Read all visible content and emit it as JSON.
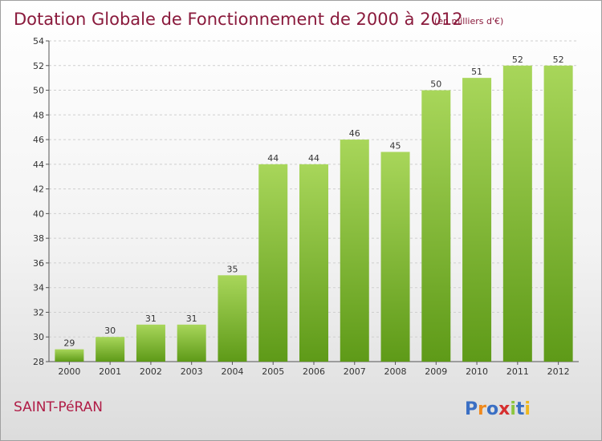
{
  "title": "Dotation Globale de Fonctionnement de 2000 à 2012",
  "subtitle": "(en milliers d'€)",
  "commune": "SAINT-PéRAN",
  "logo": {
    "text": "Proxiti",
    "letters": [
      "P",
      "r",
      "o",
      "x",
      "i",
      "t",
      "i"
    ],
    "colors": [
      "#3a6fc4",
      "#f08a1e",
      "#3a6fc4",
      "#d62f2f",
      "#8dc63f",
      "#3a6fc4",
      "#f0b81e"
    ]
  },
  "colors": {
    "title": "#8a1a3c",
    "commune": "#b01c46",
    "bar_top": "#a8d65a",
    "bar_bottom": "#5e9a18",
    "grid": "#cfcfcf"
  },
  "chart_data": {
    "type": "bar",
    "title": "Dotation Globale de Fonctionnement de 2000 à 2012",
    "subtitle": "(en milliers d'€)",
    "categories": [
      "2000",
      "2001",
      "2002",
      "2003",
      "2004",
      "2005",
      "2006",
      "2007",
      "2008",
      "2009",
      "2010",
      "2011",
      "2012"
    ],
    "values": [
      29,
      30,
      31,
      31,
      35,
      44,
      44,
      46,
      45,
      50,
      51,
      52,
      52
    ],
    "ylim": [
      28,
      54
    ],
    "yticks": [
      28,
      30,
      32,
      34,
      36,
      38,
      40,
      42,
      44,
      46,
      48,
      50,
      52,
      54
    ],
    "grid": "horizontal dashed",
    "legend": "none"
  }
}
